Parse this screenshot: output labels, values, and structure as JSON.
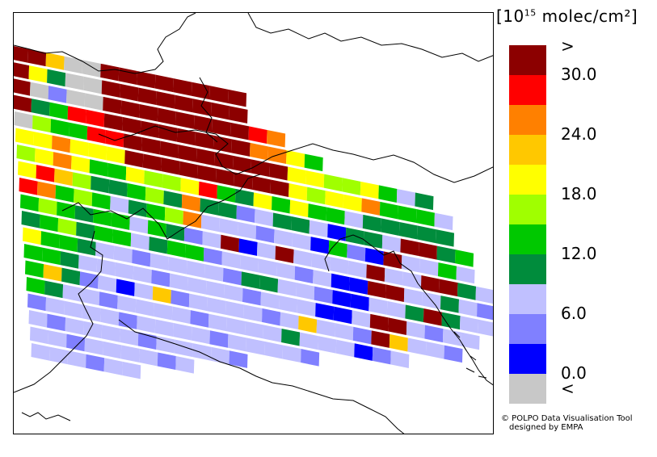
{
  "units": {
    "prefix": "[10",
    "exponent": "15",
    "suffix": " molec/cm²]"
  },
  "legend": {
    "classes": [
      {
        "label": "<",
        "color": "#c8c8c8"
      },
      {
        "label": "0.0",
        "color": "#0000ff"
      },
      {
        "label": "",
        "color": "#8080ff"
      },
      {
        "label": "6.0",
        "color": "#c0c0ff"
      },
      {
        "label": "",
        "color": "#008c3c"
      },
      {
        "label": "12.0",
        "color": "#00c800"
      },
      {
        "label": "",
        "color": "#a0ff00"
      },
      {
        "label": "18.0",
        "color": "#ffff00"
      },
      {
        "label": "",
        "color": "#ffc800"
      },
      {
        "label": "24.0",
        "color": "#ff8000"
      },
      {
        "label": "",
        "color": "#ff0000"
      },
      {
        "label": "30.0",
        "color": "#8c0000"
      },
      {
        "label": ">",
        "color": ""
      }
    ]
  },
  "swath": {
    "rows": [
      "bbsxxbbbbbbbb",
      "bycxxbbbbbbbb",
      "bxlxxbbbbbbbbro",
      "bcgrrbbbbbbbbooyg",
      "xmggrrbbbbbbbbbyymmyglc",
      "yyoyyybbbbbbbbbymyyogggl",
      "myoyggymmyrgcygygglccccc",
      "yrsmccgmcoccllcclccclbbcg",
      "rogmglcgmolllllllgllbllgl",
      "gmgcgglgcllbllbllllbllbbcl",
      "cgmcgglcgglllllllllbbllcll",
      "yggcllllllllcclllllllcbcll",
      "ggcllllllllllllllllbbllll",
      "gscllllslllllllslllbslll",
      "gcllllllllllllcllllll",
      "llllllllllllllll",
      "llllllllllll",
      "lllllllll",
      "llllll"
    ]
  },
  "credit": {
    "line1": "© POLPO Data Visualisation Tool",
    "line2": "designed by EMPA"
  }
}
